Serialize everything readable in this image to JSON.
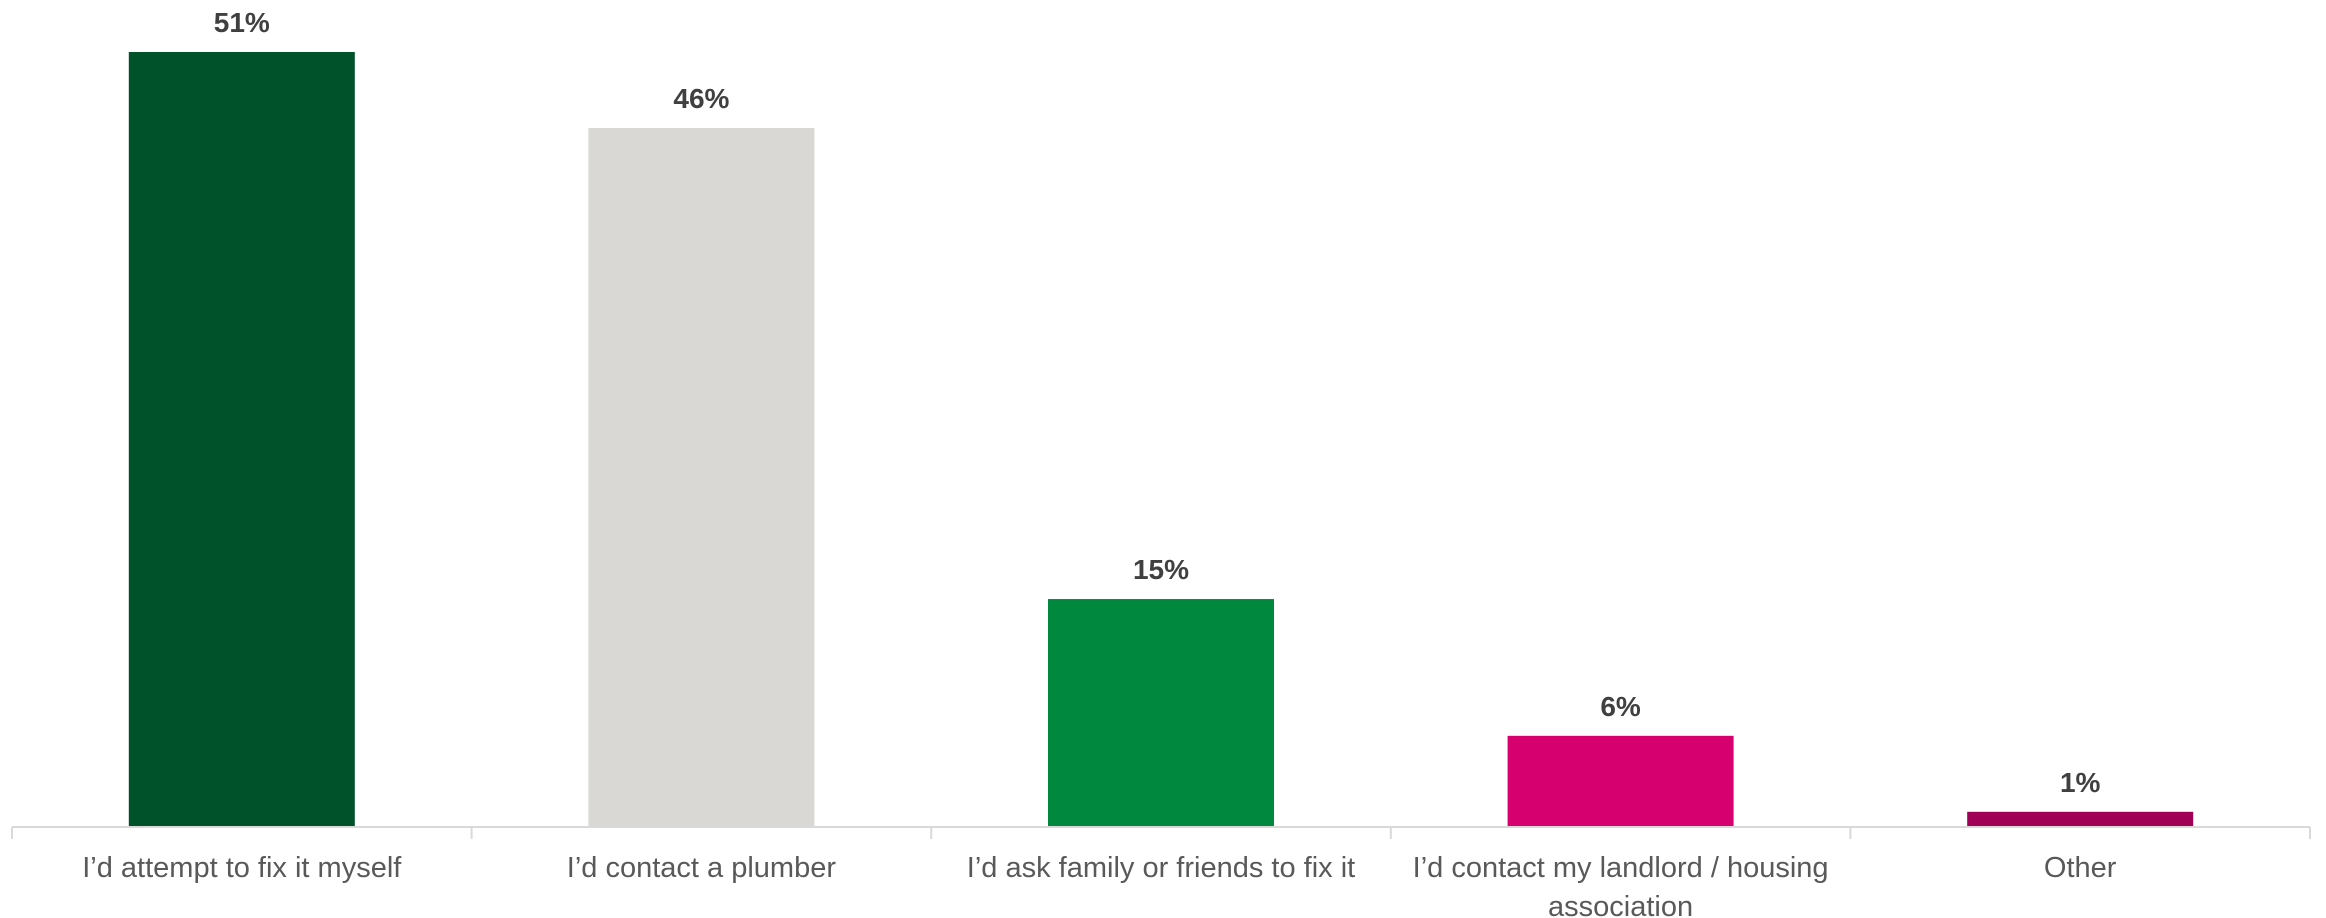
{
  "chart_data": {
    "type": "bar",
    "title": "",
    "xlabel": "",
    "ylabel": "",
    "ylim": [
      0,
      51
    ],
    "grid": false,
    "legend": "none",
    "categories": [
      "I’d attempt to fix it myself",
      "I’d contact a plumber",
      "I’d ask family or friends to fix it",
      "I’d contact my landlord / housing association",
      "Other"
    ],
    "values": [
      51,
      46,
      15,
      6,
      1
    ],
    "value_labels": [
      "51%",
      "46%",
      "15%",
      "6%",
      "1%"
    ],
    "colors": [
      "#00522a",
      "#d9d8d5",
      "#00883f",
      "#d6006f",
      "#a00056"
    ]
  }
}
